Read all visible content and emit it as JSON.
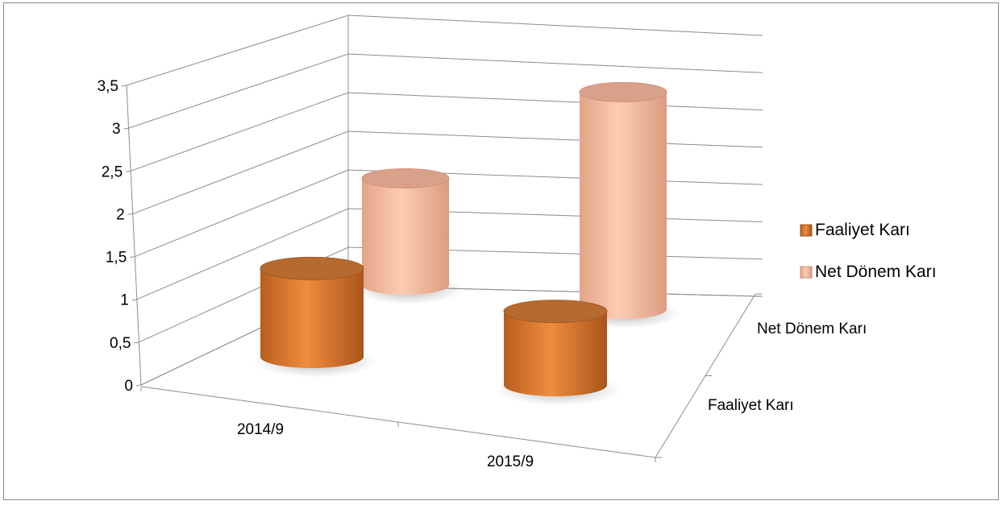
{
  "chart_data": {
    "type": "bar",
    "subtype": "3d-cylinder",
    "title": "",
    "xlabel": "",
    "ylabel": "",
    "ylim": [
      0,
      3.5
    ],
    "yticks": [
      "0",
      "0,5",
      "1",
      "1,5",
      "2",
      "2,5",
      "3",
      "3,5"
    ],
    "categories": [
      "2014/9",
      "2015/9"
    ],
    "depth_categories": [
      "Faaliyet Karı",
      "Net Dönem Karı"
    ],
    "series": [
      {
        "name": "Faaliyet Karı",
        "values": [
          1.2,
          1.0
        ],
        "color": "#D9782F"
      },
      {
        "name": "Net Dönem Karı",
        "values": [
          1.45,
          2.95
        ],
        "color": "#F5B99A"
      }
    ],
    "grid": true,
    "legend": "right"
  }
}
